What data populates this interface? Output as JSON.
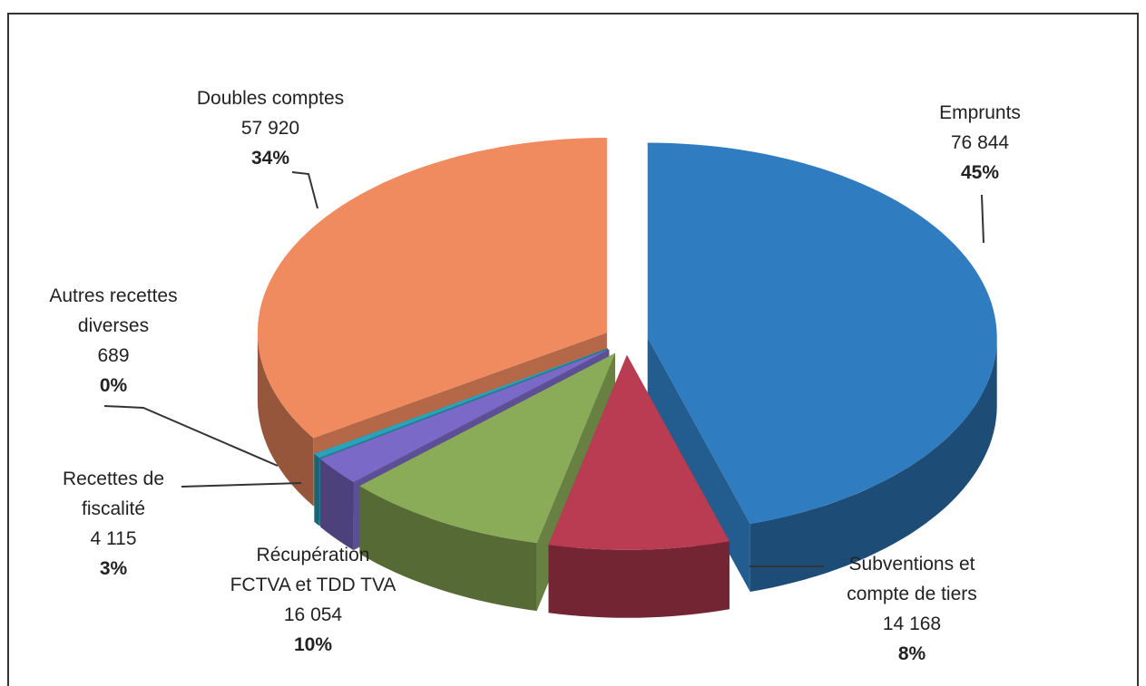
{
  "chart_data": {
    "type": "pie",
    "categories": [
      "Emprunts",
      "Subventions et compte de tiers",
      "Récupération FCTVA et TDD TVA",
      "Recettes de fiscalité",
      "Autres recettes diverses",
      "Doubles comptes"
    ],
    "values": [
      76844,
      14168,
      16054,
      4115,
      689,
      57920
    ],
    "value_labels": [
      "76 844",
      "14 168",
      "16 054",
      "4 115",
      "689",
      "57 920"
    ],
    "percent_labels": [
      "45%",
      "8%",
      "10%",
      "3%",
      "0%",
      "34%"
    ],
    "colors": [
      "#2f7cc0",
      "#b93c52",
      "#8aab57",
      "#7a69c6",
      "#2aa2ba",
      "#f08a5f"
    ]
  }
}
